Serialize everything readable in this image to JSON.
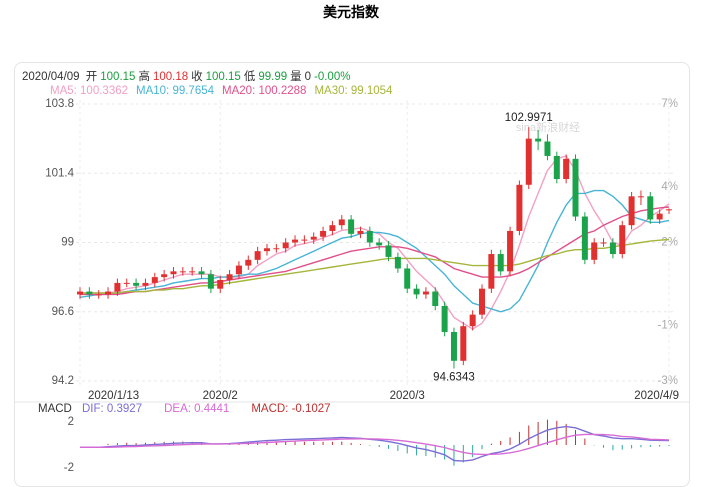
{
  "page_title": "美元指数",
  "header": {
    "date": "2020/04/09",
    "fields": [
      {
        "label": "开",
        "value": "100.15",
        "color": "#1a9e3f"
      },
      {
        "label": "高",
        "value": "100.18",
        "color": "#e03030"
      },
      {
        "label": "收",
        "value": "100.15",
        "color": "#1a9e3f"
      },
      {
        "label": "低",
        "value": "99.99",
        "color": "#1a9e3f"
      },
      {
        "label": "量",
        "value": "0",
        "color": "#333333"
      }
    ],
    "change": "-0.00%",
    "change_color": "#1a9e3f"
  },
  "chart_data": [
    {
      "type": "candlestick",
      "categories": [
        "2020/1/13",
        null,
        null,
        null,
        null,
        null,
        null,
        null,
        null,
        null,
        null,
        null,
        null,
        null,
        null,
        "2020/2",
        null,
        null,
        null,
        null,
        null,
        null,
        null,
        null,
        null,
        null,
        null,
        null,
        null,
        null,
        null,
        null,
        null,
        null,
        null,
        "2020/3",
        null,
        null,
        null,
        null,
        null,
        null,
        null,
        null,
        null,
        null,
        null,
        null,
        null,
        null,
        null,
        null,
        null,
        null,
        null,
        null,
        null,
        null,
        null,
        null,
        null,
        null,
        null,
        "2020/4/9"
      ],
      "open": [
        97.2,
        97.3,
        97.2,
        97.2,
        97.3,
        97.6,
        97.6,
        97.5,
        97.6,
        97.8,
        97.9,
        98.0,
        98.0,
        98.0,
        97.9,
        97.4,
        97.7,
        97.9,
        98.2,
        98.4,
        98.7,
        98.8,
        98.8,
        99.0,
        99.1,
        99.1,
        99.2,
        99.4,
        99.6,
        99.8,
        99.3,
        99.4,
        99.0,
        98.9,
        98.5,
        98.1,
        97.4,
        97.2,
        97.3,
        96.8,
        95.9,
        94.9,
        96.1,
        96.5,
        97.4,
        98.6,
        98.0,
        99.4,
        101.0,
        102.6,
        102.5,
        102.0,
        101.2,
        101.9,
        99.9,
        98.4,
        99.0,
        99.0,
        98.6,
        99.6,
        100.6,
        100.6,
        99.8,
        100.15
      ],
      "high": [
        97.45,
        97.45,
        97.35,
        97.45,
        97.75,
        97.75,
        97.75,
        97.75,
        97.95,
        98.05,
        98.15,
        98.15,
        98.15,
        98.15,
        98.05,
        97.85,
        98.05,
        98.35,
        98.55,
        98.85,
        98.95,
        98.95,
        99.15,
        99.25,
        99.25,
        99.35,
        99.55,
        99.75,
        99.95,
        99.95,
        99.55,
        99.55,
        99.15,
        99.05,
        98.65,
        98.25,
        97.55,
        97.45,
        97.45,
        96.95,
        96.05,
        96.25,
        96.65,
        97.55,
        98.75,
        98.75,
        99.55,
        101.15,
        102.9971,
        102.9,
        102.75,
        102.15,
        102.05,
        102.05,
        100.05,
        99.15,
        99.15,
        99.15,
        99.75,
        100.75,
        100.8,
        100.75,
        100.15,
        100.18
      ],
      "low": [
        97.05,
        97.05,
        97.05,
        97.05,
        97.15,
        97.45,
        97.35,
        97.35,
        97.45,
        97.65,
        97.75,
        97.85,
        97.85,
        97.75,
        97.25,
        97.25,
        97.55,
        97.75,
        98.05,
        98.25,
        98.55,
        98.65,
        98.65,
        98.85,
        98.95,
        98.95,
        99.05,
        99.25,
        99.45,
        99.15,
        99.15,
        98.85,
        98.75,
        98.35,
        97.95,
        97.25,
        97.05,
        97.05,
        96.65,
        95.75,
        94.6343,
        94.75,
        95.95,
        96.35,
        97.25,
        97.85,
        97.85,
        99.25,
        100.85,
        102.2,
        101.85,
        101.05,
        101.05,
        99.75,
        98.25,
        98.25,
        98.85,
        98.45,
        98.45,
        99.45,
        100.3,
        99.65,
        99.65,
        99.99
      ],
      "close": [
        97.3,
        97.2,
        97.2,
        97.3,
        97.6,
        97.6,
        97.5,
        97.6,
        97.8,
        97.9,
        98.0,
        98.0,
        98.0,
        97.9,
        97.4,
        97.7,
        97.9,
        98.2,
        98.4,
        98.7,
        98.8,
        98.8,
        99.0,
        99.1,
        99.1,
        99.2,
        99.4,
        99.6,
        99.8,
        99.3,
        99.4,
        99.0,
        98.9,
        98.5,
        98.1,
        97.4,
        97.2,
        97.3,
        96.8,
        95.9,
        94.9,
        96.1,
        96.5,
        97.4,
        98.6,
        98.0,
        99.4,
        101.0,
        102.6,
        102.5,
        102.0,
        101.2,
        101.9,
        99.9,
        98.4,
        99.0,
        99.0,
        98.6,
        99.6,
        100.6,
        100.6,
        99.8,
        100.0,
        100.15
      ],
      "up_color": "#e03030",
      "down_color": "#1aa34a",
      "series": [
        {
          "name": "MA5",
          "label": "MA5: 100.3362",
          "color": "#f2a0c4",
          "values": [
            97.25,
            97.25,
            97.25,
            97.25,
            97.3,
            97.4,
            97.45,
            97.5,
            97.6,
            97.7,
            97.8,
            97.9,
            97.9,
            97.9,
            97.9,
            97.8,
            97.8,
            97.8,
            97.9,
            98.2,
            98.4,
            98.6,
            98.7,
            98.9,
            98.96,
            99.04,
            99.16,
            99.28,
            99.42,
            99.46,
            99.5,
            99.4,
            99.3,
            99.0,
            98.8,
            98.4,
            98.0,
            97.7,
            97.4,
            96.9,
            96.4,
            96.2,
            96.0,
            96.2,
            96.7,
            97.3,
            98.0,
            98.9,
            99.9,
            100.7,
            101.5,
            101.9,
            102.0,
            101.5,
            100.7,
            100.1,
            99.6,
            99.0,
            98.9,
            99.4,
            99.6,
            99.9,
            100.1,
            100.3362
          ]
        },
        {
          "name": "MA10",
          "label": "MA10: 99.7654",
          "color": "#48b4d6",
          "values": [
            97.1,
            97.15,
            97.2,
            97.2,
            97.25,
            97.3,
            97.35,
            97.4,
            97.45,
            97.5,
            97.6,
            97.65,
            97.7,
            97.75,
            97.75,
            97.8,
            97.8,
            97.85,
            97.9,
            97.9,
            98.0,
            98.1,
            98.25,
            98.4,
            98.55,
            98.7,
            98.85,
            99.0,
            99.15,
            99.2,
            99.3,
            99.35,
            99.35,
            99.3,
            99.2,
            99.0,
            98.8,
            98.5,
            98.2,
            97.9,
            97.5,
            97.2,
            96.9,
            96.8,
            96.7,
            96.6,
            96.7,
            97.0,
            97.6,
            98.2,
            99.0,
            99.7,
            100.3,
            100.7,
            100.7,
            100.8,
            100.8,
            100.6,
            100.3,
            99.9,
            99.8,
            99.7,
            99.7,
            99.7654
          ]
        },
        {
          "name": "MA20",
          "label": "MA20: 100.2288",
          "color": "#e0508a",
          "values": [
            97.2,
            97.2,
            97.2,
            97.2,
            97.2,
            97.25,
            97.3,
            97.3,
            97.35,
            97.4,
            97.45,
            97.5,
            97.55,
            97.6,
            97.6,
            97.65,
            97.7,
            97.75,
            97.8,
            97.85,
            97.9,
            97.95,
            98.0,
            98.1,
            98.2,
            98.3,
            98.4,
            98.5,
            98.6,
            98.7,
            98.75,
            98.8,
            98.85,
            98.85,
            98.85,
            98.8,
            98.7,
            98.6,
            98.5,
            98.3,
            98.1,
            98.0,
            97.9,
            97.8,
            97.8,
            97.8,
            97.85,
            97.95,
            98.1,
            98.3,
            98.5,
            98.7,
            98.9,
            99.1,
            99.3,
            99.4,
            99.6,
            99.75,
            99.9,
            100.0,
            100.1,
            100.15,
            100.2,
            100.2288
          ]
        },
        {
          "name": "MA30",
          "label": "MA30: 99.1054",
          "color": "#a6b63a",
          "values": [
            97.25,
            97.25,
            97.25,
            97.25,
            97.25,
            97.3,
            97.3,
            97.3,
            97.35,
            97.35,
            97.4,
            97.4,
            97.45,
            97.5,
            97.5,
            97.55,
            97.6,
            97.65,
            97.7,
            97.75,
            97.8,
            97.85,
            97.9,
            97.95,
            98.0,
            98.05,
            98.1,
            98.15,
            98.2,
            98.25,
            98.3,
            98.35,
            98.4,
            98.45,
            98.45,
            98.45,
            98.45,
            98.45,
            98.4,
            98.35,
            98.3,
            98.25,
            98.2,
            98.2,
            98.2,
            98.2,
            98.2,
            98.25,
            98.35,
            98.45,
            98.55,
            98.6,
            98.7,
            98.75,
            98.75,
            98.8,
            98.8,
            98.85,
            98.9,
            98.95,
            99.0,
            99.05,
            99.08,
            99.1054
          ]
        }
      ],
      "ylim": [
        94.2,
        103.8
      ],
      "yticks": [
        94.2,
        96.6,
        99,
        101.4,
        103.8
      ],
      "y2lim": [
        -3,
        7
      ],
      "y2ticks": [
        {
          "value": -3,
          "label": "-3%"
        },
        {
          "value": -1,
          "label": "-1%"
        },
        {
          "value": 2,
          "label": "2%"
        },
        {
          "value": 4,
          "label": "4%"
        },
        {
          "value": 7,
          "label": "7%"
        }
      ],
      "max_label": "102.9971",
      "min_label": "94.6343",
      "watermark": "sina新浪财经",
      "grid": true
    },
    {
      "type": "macd",
      "title": "MACD",
      "series": [
        {
          "name": "DIF",
          "label": "DIF: 0.3927",
          "color": "#7b6fd6",
          "kind": "line",
          "values": [
            -0.2,
            -0.2,
            -0.2,
            -0.15,
            -0.1,
            -0.05,
            -0.05,
            0,
            0.05,
            0.1,
            0.15,
            0.18,
            0.2,
            0.2,
            0.1,
            0.1,
            0.12,
            0.18,
            0.25,
            0.32,
            0.38,
            0.42,
            0.47,
            0.5,
            0.52,
            0.55,
            0.58,
            0.62,
            0.66,
            0.62,
            0.58,
            0.5,
            0.42,
            0.3,
            0.15,
            -0.05,
            -0.25,
            -0.4,
            -0.6,
            -0.85,
            -1.35,
            -1.4,
            -1.3,
            -1.0,
            -0.75,
            -0.6,
            -0.35,
            0.05,
            0.55,
            0.95,
            1.3,
            1.5,
            1.6,
            1.5,
            1.2,
            0.9,
            0.78,
            0.62,
            0.55,
            0.55,
            0.5,
            0.42,
            0.4,
            0.3927
          ]
        },
        {
          "name": "DEA",
          "label": "DEA: 0.4441",
          "color": "#d86ad6",
          "kind": "line",
          "values": [
            -0.2,
            -0.2,
            -0.2,
            -0.2,
            -0.18,
            -0.15,
            -0.13,
            -0.1,
            -0.07,
            -0.04,
            0,
            0.03,
            0.06,
            0.09,
            0.1,
            0.1,
            0.1,
            0.12,
            0.14,
            0.18,
            0.22,
            0.26,
            0.3,
            0.34,
            0.38,
            0.41,
            0.44,
            0.48,
            0.51,
            0.53,
            0.54,
            0.53,
            0.51,
            0.47,
            0.41,
            0.32,
            0.2,
            0.08,
            -0.06,
            -0.22,
            -0.45,
            -0.64,
            -0.77,
            -0.82,
            -0.81,
            -0.77,
            -0.68,
            -0.52,
            -0.3,
            -0.05,
            0.2,
            0.45,
            0.68,
            0.85,
            0.92,
            0.92,
            0.9,
            0.85,
            0.75,
            0.7,
            0.6,
            0.5,
            0.47,
            0.4441
          ]
        },
        {
          "name": "MACD",
          "label": "MACD: -0.1027",
          "color": "#c03030",
          "kind": "bar",
          "values": [
            0,
            0,
            0,
            0.1,
            0.16,
            0.2,
            0.16,
            0.2,
            0.24,
            0.28,
            0.3,
            0.3,
            0.28,
            0.22,
            0,
            0,
            0.04,
            0.12,
            0.22,
            0.28,
            0.32,
            0.32,
            0.34,
            0.32,
            0.28,
            0.28,
            0.28,
            0.28,
            0.3,
            0.18,
            0.08,
            -0.06,
            -0.18,
            -0.34,
            -0.52,
            -0.74,
            -0.9,
            -0.96,
            -1.08,
            -1.26,
            -1.8,
            -1.52,
            -1.06,
            -0.36,
            0.12,
            0.34,
            0.66,
            1.14,
            1.7,
            2.0,
            2.2,
            2.1,
            1.84,
            1.3,
            0.56,
            -0.04,
            -0.24,
            -0.46,
            -0.4,
            -0.3,
            -0.2,
            -0.16,
            -0.14,
            -0.1027
          ]
        }
      ],
      "up_color": "#c03030",
      "down_color": "#2aa8a0",
      "ylim": [
        -3,
        3
      ],
      "yticks": [
        2,
        -2
      ]
    }
  ]
}
